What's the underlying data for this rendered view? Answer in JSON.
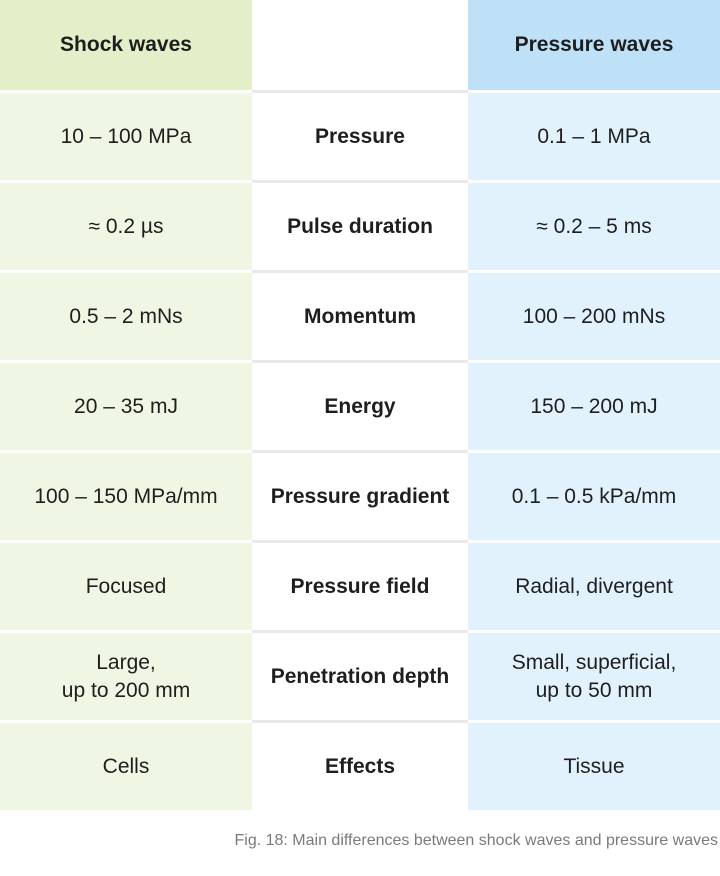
{
  "header": {
    "left": "Shock waves",
    "middle": "",
    "right": "Pressure waves"
  },
  "rows": [
    {
      "left": "10 – 100 MPa",
      "label": "Pressure",
      "right": "0.1 – 1 MPa"
    },
    {
      "left": "≈ 0.2 µs",
      "label": "Pulse duration",
      "right": "≈ 0.2 – 5 ms"
    },
    {
      "left": "0.5 – 2 mNs",
      "label": "Momentum",
      "right": "100 – 200 mNs"
    },
    {
      "left": "20 – 35 mJ",
      "label": "Energy",
      "right": "150 – 200 mJ"
    },
    {
      "left": "100 – 150 MPa/mm",
      "label": "Pressure gradient",
      "right": "0.1 – 0.5 kPa/mm"
    },
    {
      "left": "Focused",
      "label": "Pressure field",
      "right": "Radial, divergent"
    },
    {
      "left": "Large,\nup to 200 mm",
      "label": "Penetration depth",
      "right": "Small, superficial,\nup to 50 mm"
    },
    {
      "left": "Cells",
      "label": "Effects",
      "right": "Tissue"
    }
  ],
  "caption": "Fig. 18: Main differences between shock waves and pressure waves",
  "colors": {
    "shock_header": "#e3efc8",
    "shock_cell": "#f0f6e4",
    "pressure_header": "#bfe1f8",
    "pressure_cell": "#e1f2fd"
  }
}
